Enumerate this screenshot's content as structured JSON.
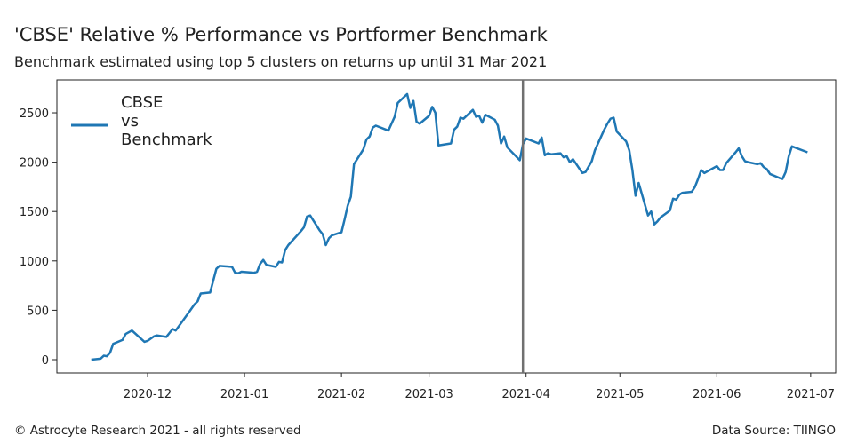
{
  "chart_data": {
    "type": "line",
    "title": "'CBSE' Relative % Performance vs Portformer Benchmark",
    "subtitle": "Benchmark estimated using top 5 clusters on returns up until 31 Mar 2021",
    "x": [
      "2020-11-13",
      "2020-11-16",
      "2020-11-17",
      "2020-11-18",
      "2020-11-19",
      "2020-11-20",
      "2020-11-23",
      "2020-11-24",
      "2020-11-26",
      "2020-11-30",
      "2020-12-01",
      "2020-12-03",
      "2020-12-04",
      "2020-12-07",
      "2020-12-08",
      "2020-12-09",
      "2020-12-10",
      "2020-12-14",
      "2020-12-16",
      "2020-12-17",
      "2020-12-18",
      "2020-12-21",
      "2020-12-22",
      "2020-12-23",
      "2020-12-24",
      "2020-12-28",
      "2020-12-29",
      "2020-12-30",
      "2020-12-31",
      "2021-01-04",
      "2021-01-05",
      "2021-01-06",
      "2021-01-07",
      "2021-01-08",
      "2021-01-11",
      "2021-01-12",
      "2021-01-13",
      "2021-01-14",
      "2021-01-15",
      "2021-01-19",
      "2021-01-20",
      "2021-01-21",
      "2021-01-22",
      "2021-01-25",
      "2021-01-26",
      "2021-01-27",
      "2021-01-28",
      "2021-01-29",
      "2021-02-01",
      "2021-02-02",
      "2021-02-03",
      "2021-02-04",
      "2021-02-05",
      "2021-02-08",
      "2021-02-09",
      "2021-02-10",
      "2021-02-11",
      "2021-02-12",
      "2021-02-16",
      "2021-02-18",
      "2021-02-19",
      "2021-02-22",
      "2021-02-23",
      "2021-02-24",
      "2021-02-25",
      "2021-02-26",
      "2021-03-01",
      "2021-03-02",
      "2021-03-03",
      "2021-03-04",
      "2021-03-08",
      "2021-03-09",
      "2021-03-10",
      "2021-03-11",
      "2021-03-12",
      "2021-03-15",
      "2021-03-16",
      "2021-03-17",
      "2021-03-18",
      "2021-03-19",
      "2021-03-22",
      "2021-03-23",
      "2021-03-24",
      "2021-03-25",
      "2021-03-26",
      "2021-03-30",
      "2021-03-31",
      "2021-04-01",
      "2021-04-05",
      "2021-04-06",
      "2021-04-07",
      "2021-04-08",
      "2021-04-09",
      "2021-04-12",
      "2021-04-13",
      "2021-04-14",
      "2021-04-15",
      "2021-04-16",
      "2021-04-19",
      "2021-04-20",
      "2021-04-22",
      "2021-04-23",
      "2021-04-26",
      "2021-04-27",
      "2021-04-28",
      "2021-04-29",
      "2021-04-30",
      "2021-05-03",
      "2021-05-04",
      "2021-05-05",
      "2021-05-06",
      "2021-05-07",
      "2021-05-10",
      "2021-05-11",
      "2021-05-12",
      "2021-05-13",
      "2021-05-14",
      "2021-05-17",
      "2021-05-18",
      "2021-05-19",
      "2021-05-20",
      "2021-05-21",
      "2021-05-24",
      "2021-05-25",
      "2021-05-26",
      "2021-05-27",
      "2021-05-28",
      "2021-06-01",
      "2021-06-02",
      "2021-06-03",
      "2021-06-04",
      "2021-06-07",
      "2021-06-08",
      "2021-06-09",
      "2021-06-10",
      "2021-06-11",
      "2021-06-14",
      "2021-06-15",
      "2021-06-16",
      "2021-06-17",
      "2021-06-18",
      "2021-06-21",
      "2021-06-22",
      "2021-06-23",
      "2021-06-24",
      "2021-06-25",
      "2021-06-30"
    ],
    "series": [
      {
        "name": "CBSE\nvs\nBenchmark",
        "color": "#1f77b4",
        "values": [
          0,
          10,
          40,
          35,
          70,
          160,
          200,
          260,
          295,
          180,
          190,
          235,
          245,
          230,
          270,
          310,
          295,
          470,
          560,
          590,
          670,
          680,
          800,
          920,
          950,
          940,
          880,
          875,
          890,
          880,
          890,
          970,
          1010,
          960,
          940,
          990,
          985,
          1110,
          1160,
          1300,
          1340,
          1450,
          1460,
          1310,
          1270,
          1160,
          1230,
          1260,
          1290,
          1420,
          1560,
          1650,
          1980,
          2130,
          2230,
          2260,
          2350,
          2370,
          2320,
          2460,
          2600,
          2690,
          2550,
          2620,
          2410,
          2390,
          2470,
          2560,
          2500,
          2170,
          2190,
          2330,
          2360,
          2450,
          2440,
          2530,
          2460,
          2470,
          2400,
          2480,
          2430,
          2370,
          2190,
          2260,
          2150,
          2020,
          2180,
          2240,
          2190,
          2250,
          2070,
          2090,
          2080,
          2090,
          2050,
          2060,
          2000,
          2030,
          1890,
          1900,
          2010,
          2120,
          2330,
          2390,
          2440,
          2450,
          2310,
          2210,
          2120,
          1920,
          1660,
          1790,
          1460,
          1500,
          1370,
          1400,
          1440,
          1510,
          1630,
          1620,
          1670,
          1690,
          1700,
          1750,
          1830,
          1920,
          1890,
          1960,
          1920,
          1920,
          1990,
          2100,
          2140,
          2060,
          2010,
          2000,
          1980,
          1990,
          1950,
          1930,
          1880,
          1840,
          1830,
          1900,
          2060,
          2160,
          2100
        ]
      }
    ],
    "xlim": [
      "2020-11-02",
      "2021-07-09"
    ],
    "xticks": [
      "2020-12",
      "2021-01",
      "2021-02",
      "2021-03",
      "2021-04",
      "2021-05",
      "2021-06",
      "2021-07"
    ],
    "ylim": [
      -135,
      2833
    ],
    "yticks": [
      0,
      500,
      1000,
      1500,
      2000,
      2500
    ],
    "vline": "2021-03-31",
    "vline_color": "#707070",
    "legend": "upper-left",
    "grid": false
  },
  "footer": {
    "left": "© Astrocyte Research 2021 - all rights reserved",
    "right": "Data Source: TIINGO"
  }
}
